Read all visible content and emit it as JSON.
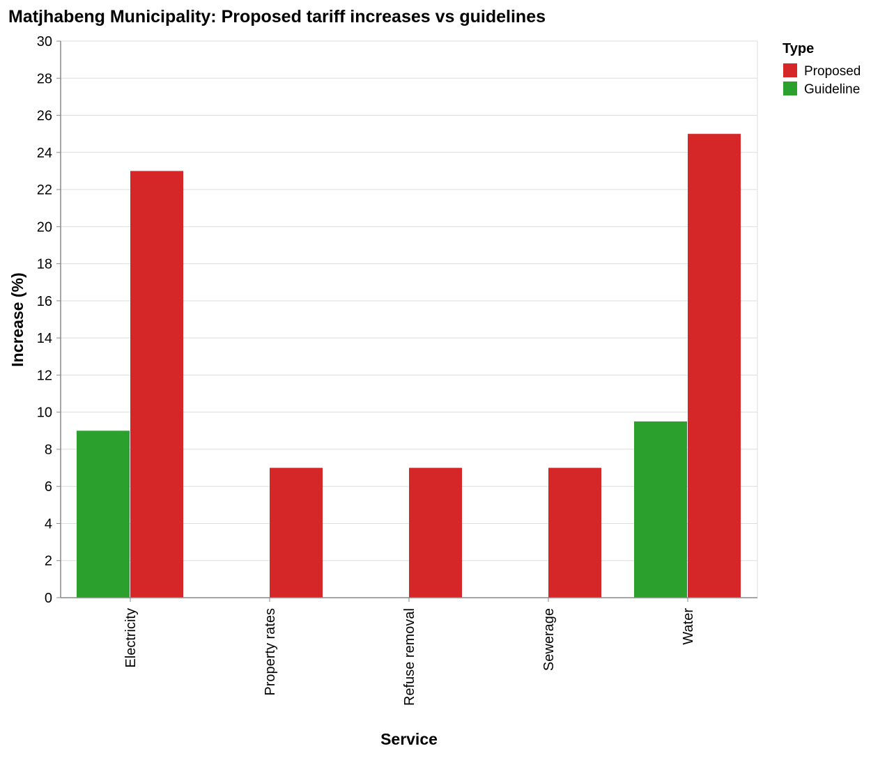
{
  "chart_data": {
    "type": "bar",
    "title": "Matjhabeng Municipality: Proposed tariff increases vs guidelines",
    "xlabel": "Service",
    "ylabel": "Increase (%)",
    "ylim": [
      0,
      30
    ],
    "yticks": [
      0,
      2,
      4,
      6,
      8,
      10,
      12,
      14,
      16,
      18,
      20,
      22,
      24,
      26,
      28,
      30
    ],
    "grid": true,
    "categories": [
      "Electricity",
      "Property rates",
      "Refuse removal",
      "Sewerage",
      "Water"
    ],
    "series": [
      {
        "name": "Guideline",
        "color": "#2ca02c",
        "values": [
          9,
          null,
          null,
          null,
          9.5
        ]
      },
      {
        "name": "Proposed",
        "color": "#d62728",
        "values": [
          23,
          7,
          7,
          7,
          25
        ]
      }
    ],
    "legend": {
      "title": "Type",
      "placement": "top-right",
      "entries": [
        {
          "label": "Proposed",
          "color": "#d62728"
        },
        {
          "label": "Guideline",
          "color": "#2ca02c"
        }
      ]
    }
  }
}
